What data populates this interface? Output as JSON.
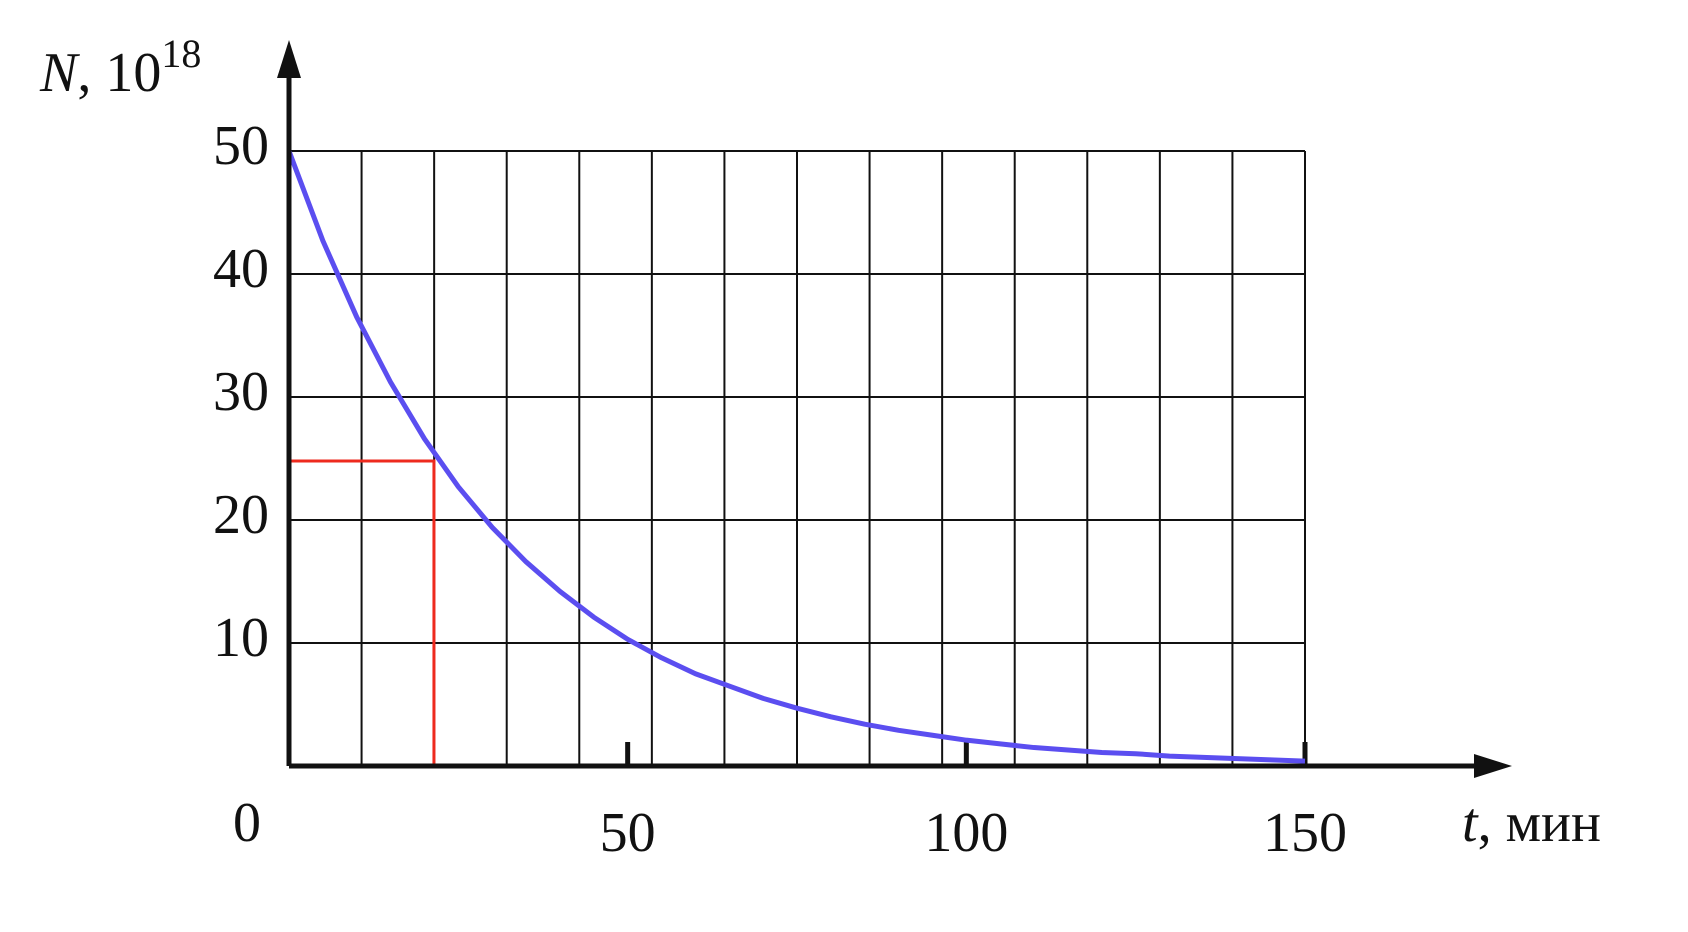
{
  "chart_data": {
    "type": "line",
    "ylabel_var": "N",
    "ylabel_rest": ", 10",
    "ylabel_exp": "18",
    "xlabel_var": "t",
    "xlabel_rest": ", мин",
    "x": [
      0,
      5,
      10,
      15,
      20,
      25,
      30,
      35,
      40,
      45,
      50,
      55,
      60,
      65,
      70,
      75,
      80,
      85,
      90,
      95,
      100,
      105,
      110,
      115,
      120,
      125,
      130,
      135,
      140,
      145,
      150
    ],
    "series": [
      {
        "color": "#5b4ef0",
        "values": [
          50,
          42.7,
          36.5,
          31.2,
          26.6,
          22.7,
          19.4,
          16.6,
          14.2,
          12.1,
          10.3,
          8.8,
          7.5,
          6.5,
          5.5,
          4.7,
          4.0,
          3.4,
          2.9,
          2.5,
          2.1,
          1.8,
          1.5,
          1.3,
          1.1,
          1.0,
          0.8,
          0.7,
          0.6,
          0.5,
          0.4
        ]
      }
    ],
    "marker": {
      "x": 21.4,
      "y": 24.8,
      "color": "#ee2a1e"
    },
    "xlim": [
      0,
      150
    ],
    "ylim": [
      0,
      50
    ],
    "xticks": [
      0,
      50,
      100,
      150
    ],
    "yticks": [
      10,
      20,
      30,
      40,
      50
    ],
    "grid": true
  }
}
